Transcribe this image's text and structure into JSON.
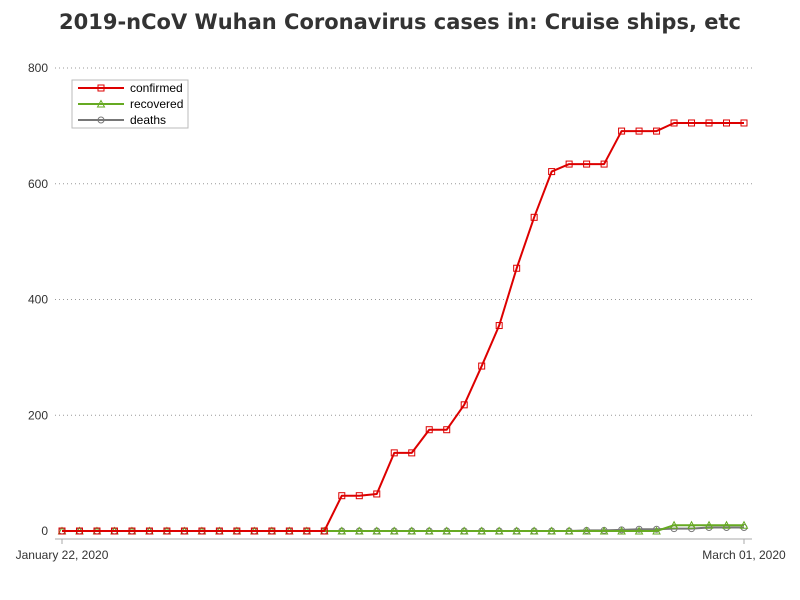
{
  "chart_data": {
    "type": "line",
    "title": "2019-nCoV Wuhan Coronavirus cases in: Cruise ships, etc",
    "xlabel": "",
    "ylabel": "",
    "x_tick_labels": [
      "January 22, 2020",
      "March 01, 2020"
    ],
    "x": [
      "2020-01-22",
      "2020-01-23",
      "2020-01-24",
      "2020-01-25",
      "2020-01-26",
      "2020-01-27",
      "2020-01-28",
      "2020-01-29",
      "2020-01-30",
      "2020-01-31",
      "2020-02-01",
      "2020-02-02",
      "2020-02-03",
      "2020-02-04",
      "2020-02-05",
      "2020-02-06",
      "2020-02-07",
      "2020-02-08",
      "2020-02-09",
      "2020-02-10",
      "2020-02-11",
      "2020-02-12",
      "2020-02-13",
      "2020-02-14",
      "2020-02-15",
      "2020-02-16",
      "2020-02-17",
      "2020-02-18",
      "2020-02-19",
      "2020-02-20",
      "2020-02-21",
      "2020-02-22",
      "2020-02-23",
      "2020-02-24",
      "2020-02-25",
      "2020-02-26",
      "2020-02-27",
      "2020-02-28",
      "2020-02-29",
      "2020-03-01"
    ],
    "ylim": [
      0,
      800
    ],
    "y_ticks": [
      0,
      200,
      400,
      600,
      800
    ],
    "grid": "horizontal dotted",
    "legend_position": "top-left",
    "series": [
      {
        "name": "confirmed",
        "color": "#dd0000",
        "marker": "square",
        "values": [
          0,
          0,
          0,
          0,
          0,
          0,
          0,
          0,
          0,
          0,
          0,
          0,
          0,
          0,
          0,
          0,
          61,
          61,
          64,
          135,
          135,
          175,
          175,
          218,
          285,
          355,
          454,
          542,
          621,
          634,
          634,
          634,
          691,
          691,
          691,
          705,
          705,
          705,
          705,
          705
        ]
      },
      {
        "name": "recovered",
        "color": "#66aa22",
        "marker": "triangle",
        "values": [
          0,
          0,
          0,
          0,
          0,
          0,
          0,
          0,
          0,
          0,
          0,
          0,
          0,
          0,
          0,
          0,
          0,
          0,
          0,
          0,
          0,
          0,
          0,
          0,
          0,
          0,
          0,
          0,
          0,
          0,
          0,
          0,
          0,
          0,
          0,
          10,
          10,
          10,
          10,
          10
        ]
      },
      {
        "name": "deaths",
        "color": "#777777",
        "marker": "circle",
        "values": [
          0,
          0,
          0,
          0,
          0,
          0,
          0,
          0,
          0,
          0,
          0,
          0,
          0,
          0,
          0,
          0,
          0,
          0,
          0,
          0,
          0,
          0,
          0,
          0,
          0,
          0,
          0,
          0,
          0,
          0,
          1,
          1,
          2,
          3,
          3,
          4,
          4,
          6,
          6,
          6
        ]
      }
    ]
  }
}
